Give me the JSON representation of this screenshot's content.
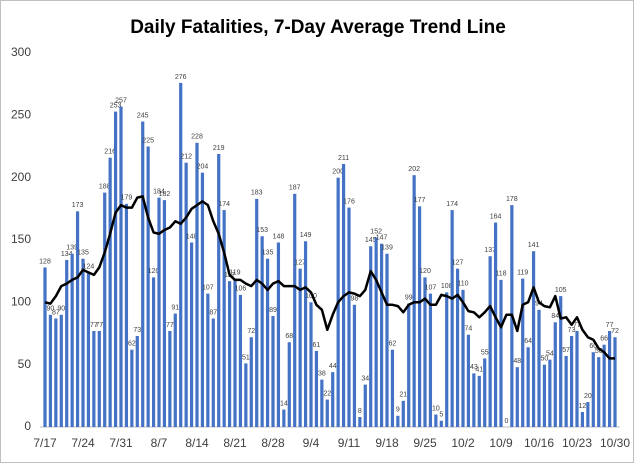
{
  "chart_data": {
    "type": "bar",
    "title": "Daily Fatalities, 7-Day Average Trend Line",
    "categories": [
      "7/17",
      null,
      null,
      null,
      null,
      null,
      null,
      "7/24",
      null,
      null,
      null,
      null,
      null,
      null,
      "7/31",
      null,
      null,
      null,
      null,
      null,
      null,
      "8/7",
      null,
      null,
      null,
      null,
      null,
      null,
      "8/14",
      null,
      null,
      null,
      null,
      null,
      null,
      "8/21",
      null,
      null,
      null,
      null,
      null,
      null,
      "8/28",
      null,
      null,
      null,
      null,
      null,
      null,
      "9/4",
      null,
      null,
      null,
      null,
      null,
      null,
      "9/11",
      null,
      null,
      null,
      null,
      null,
      null,
      "9/18",
      null,
      null,
      null,
      null,
      null,
      null,
      "9/25",
      null,
      null,
      null,
      null,
      null,
      null,
      "10/2",
      null,
      null,
      null,
      null,
      null,
      null,
      "10/9",
      null,
      null,
      null,
      null,
      null,
      null,
      "10/16",
      null,
      null,
      null,
      null,
      null,
      null,
      "10/23",
      null,
      null,
      null,
      null,
      null,
      null,
      "10/30"
    ],
    "series": [
      {
        "type": "bar",
        "color": "#4472c4",
        "values": [
          128,
          90,
          87,
          90,
          134,
          139,
          173,
          135,
          124,
          77,
          77,
          188,
          216,
          253,
          257,
          179,
          62,
          73,
          245,
          225,
          120,
          184,
          182,
          77,
          91,
          276,
          212,
          148,
          228,
          204,
          107,
          87,
          219,
          174,
          117,
          119,
          106,
          51,
          72,
          183,
          153,
          135,
          89,
          148,
          14,
          68,
          187,
          127,
          149,
          100,
          61,
          38,
          22,
          44,
          200,
          211,
          176,
          98,
          8,
          34,
          145,
          152,
          147,
          139,
          62,
          9,
          21,
          99,
          202,
          177,
          120,
          107,
          10,
          5,
          108,
          174,
          127,
          110,
          74,
          43,
          41,
          55,
          137,
          164,
          118,
          0,
          178,
          48,
          119,
          64,
          141,
          94,
          50,
          54,
          84,
          105,
          57,
          73,
          77,
          12,
          20,
          60,
          56,
          66,
          77,
          72
        ]
      },
      {
        "type": "line",
        "color": "#000000",
        "values": [
          100,
          99,
          105,
          113,
          115,
          118,
          120,
          126,
          124,
          122,
          128,
          140,
          155,
          172,
          178,
          176,
          176,
          184,
          185,
          168,
          156,
          155,
          158,
          160,
          165,
          163,
          168,
          175,
          178,
          181,
          178,
          165,
          155,
          140,
          122,
          118,
          118,
          115,
          113,
          118,
          115,
          110,
          115,
          117,
          113,
          113,
          113,
          110,
          112,
          108,
          98,
          94,
          78,
          90,
          100,
          105,
          108,
          107,
          105,
          110,
          125,
          118,
          108,
          98,
          98,
          97,
          92,
          98,
          100,
          100,
          103,
          98,
          98,
          106,
          105,
          103,
          106,
          100,
          93,
          92,
          88,
          92,
          97,
          88,
          80,
          90,
          90,
          77,
          98,
          100,
          112,
          100,
          97,
          96,
          105,
          87,
          88,
          82,
          88,
          78,
          72,
          70,
          63,
          60,
          55,
          55
        ]
      }
    ],
    "ylim": [
      0,
      300
    ],
    "yticks": [
      0,
      50,
      100,
      150,
      200,
      250,
      300
    ],
    "grid": false
  }
}
